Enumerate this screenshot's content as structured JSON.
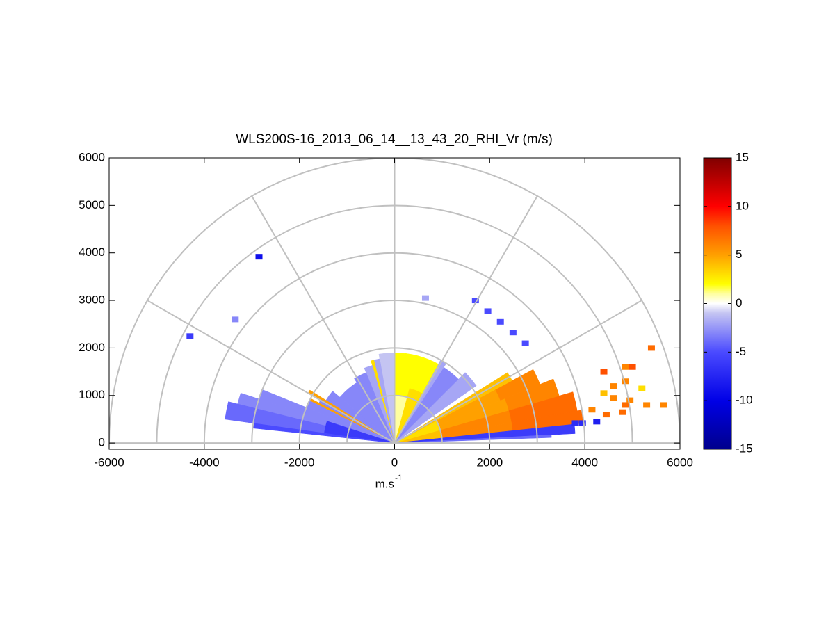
{
  "chart_data": {
    "type": "polar-rhi",
    "title": "WLS200S-16_2013_06_14__13_43_20_RHI_Vr (m/s)",
    "x_label": "m.s",
    "x_label_superscript": "-1",
    "xlim": [
      -6000,
      6000
    ],
    "xticks": [
      -6000,
      -4000,
      -2000,
      0,
      2000,
      4000,
      6000
    ],
    "ylim": [
      -130,
      6000
    ],
    "yticks": [
      0,
      1000,
      2000,
      3000,
      4000,
      5000,
      6000
    ],
    "polar_rings": [
      1000,
      2000,
      3000,
      4000,
      5000,
      6000
    ],
    "polar_spokes": [
      0,
      30,
      60,
      90,
      120,
      150,
      180
    ],
    "grid_color": "#c0c0c0",
    "colorbar": {
      "lim": [
        -15,
        15
      ],
      "ticks": [
        15,
        10,
        5,
        0,
        -5,
        -10,
        -15
      ]
    },
    "colormap": [
      {
        "value": -15,
        "color": "#00008c"
      },
      {
        "value": -10,
        "color": "#0000e6"
      },
      {
        "value": -5,
        "color": "#4a4aff"
      },
      {
        "value": -1,
        "color": "#c4c4f2"
      },
      {
        "value": 0,
        "color": "#ffffff"
      },
      {
        "value": 1,
        "color": "#ffffa0"
      },
      {
        "value": 2,
        "color": "#ffff00"
      },
      {
        "value": 5,
        "color": "#ffa000"
      },
      {
        "value": 8,
        "color": "#ff5000"
      },
      {
        "value": 10,
        "color": "#ff0000"
      },
      {
        "value": 15,
        "color": "#800000"
      }
    ],
    "sectors": [
      {
        "angles": [
          6,
          10
        ],
        "radii": [
          0,
          1000
        ],
        "value": 4
      },
      {
        "angles": [
          6,
          10
        ],
        "radii": [
          1000,
          2500
        ],
        "value": 6
      },
      {
        "angles": [
          6,
          10
        ],
        "radii": [
          2500,
          4000
        ],
        "value": 7
      },
      {
        "angles": [
          10,
          16
        ],
        "radii": [
          0,
          1000
        ],
        "value": 4
      },
      {
        "angles": [
          10,
          16
        ],
        "radii": [
          1000,
          2500
        ],
        "value": 6
      },
      {
        "angles": [
          10,
          16
        ],
        "radii": [
          2500,
          3900
        ],
        "value": 7
      },
      {
        "angles": [
          16,
          22
        ],
        "radii": [
          0,
          1000
        ],
        "value": 3
      },
      {
        "angles": [
          16,
          22
        ],
        "radii": [
          1000,
          2500
        ],
        "value": 5
      },
      {
        "angles": [
          16,
          22
        ],
        "radii": [
          2500,
          3600
        ],
        "value": 6
      },
      {
        "angles": [
          22,
          28
        ],
        "radii": [
          0,
          1000
        ],
        "value": 3
      },
      {
        "angles": [
          22,
          28
        ],
        "radii": [
          1000,
          2400
        ],
        "value": 5
      },
      {
        "angles": [
          22,
          28
        ],
        "radii": [
          2400,
          3300
        ],
        "value": 6
      },
      {
        "angles": [
          28,
          32
        ],
        "radii": [
          0,
          2800
        ],
        "value": 4
      },
      {
        "angles": [
          3,
          6
        ],
        "radii": [
          0,
          3800
        ],
        "value": -6
      },
      {
        "angles": [
          2,
          3
        ],
        "radii": [
          0,
          3300
        ],
        "value": -4
      },
      {
        "angles": [
          35,
          45
        ],
        "radii": [
          0,
          2100
        ],
        "value": -2
      },
      {
        "angles": [
          45,
          57
        ],
        "radii": [
          0,
          1900
        ],
        "value": -3
      },
      {
        "angles": [
          57,
          61
        ],
        "radii": [
          0,
          2000
        ],
        "value": -2
      },
      {
        "angles": [
          61,
          75
        ],
        "radii": [
          0,
          1200
        ],
        "value": 3
      },
      {
        "angles": [
          61,
          75
        ],
        "radii": [
          1200,
          1900
        ],
        "value": 2
      },
      {
        "angles": [
          75,
          90
        ],
        "radii": [
          0,
          1000
        ],
        "value": 1
      },
      {
        "angles": [
          75,
          90
        ],
        "radii": [
          1000,
          1900
        ],
        "value": 2
      },
      {
        "angles": [
          90,
          100
        ],
        "radii": [
          0,
          1900
        ],
        "value": -1
      },
      {
        "angles": [
          100,
          104
        ],
        "radii": [
          0,
          1800
        ],
        "value": -2
      },
      {
        "angles": [
          104,
          106
        ],
        "radii": [
          0,
          1800
        ],
        "value": 3
      },
      {
        "angles": [
          106,
          112
        ],
        "radii": [
          0,
          1700
        ],
        "value": -2
      },
      {
        "angles": [
          112,
          122
        ],
        "radii": [
          0,
          1600
        ],
        "value": -3
      },
      {
        "angles": [
          122,
          140
        ],
        "radii": [
          0,
          1500
        ],
        "value": -3
      },
      {
        "angles": [
          140,
          148
        ],
        "radii": [
          0,
          1700
        ],
        "value": -3
      },
      {
        "angles": [
          148,
          149.5
        ],
        "radii": [
          0,
          2100
        ],
        "value": 5
      },
      {
        "angles": [
          149.5,
          152
        ],
        "radii": [
          0,
          1800
        ],
        "value": -3
      },
      {
        "angles": [
          152,
          153.5
        ],
        "radii": [
          0,
          2000
        ],
        "value": 5
      },
      {
        "angles": [
          153.5,
          158
        ],
        "radii": [
          0,
          2000
        ],
        "value": -3
      },
      {
        "angles": [
          158,
          162
        ],
        "radii": [
          0,
          3000
        ],
        "value": -3
      },
      {
        "angles": [
          162,
          166
        ],
        "radii": [
          0,
          1500
        ],
        "value": -6
      },
      {
        "angles": [
          162,
          166
        ],
        "radii": [
          1500,
          3400
        ],
        "value": -3
      },
      {
        "angles": [
          166,
          172
        ],
        "radii": [
          0,
          1500
        ],
        "value": -6
      },
      {
        "angles": [
          166,
          172
        ],
        "radii": [
          1500,
          3600
        ],
        "value": -4
      },
      {
        "angles": [
          172,
          174
        ],
        "radii": [
          0,
          3000
        ],
        "value": -5
      }
    ],
    "cells": [
      {
        "x": -2850,
        "y": 3920,
        "value": -9
      },
      {
        "x": -3350,
        "y": 2600,
        "value": -3
      },
      {
        "x": -4300,
        "y": 2250,
        "value": -6
      },
      {
        "x": 650,
        "y": 3050,
        "value": -2
      },
      {
        "x": 1700,
        "y": 3000,
        "value": -5
      },
      {
        "x": 1960,
        "y": 2775,
        "value": -5
      },
      {
        "x": 2225,
        "y": 2550,
        "value": -5
      },
      {
        "x": 2490,
        "y": 2325,
        "value": -5
      },
      {
        "x": 2750,
        "y": 2100,
        "value": -5
      },
      {
        "x": 4400,
        "y": 1500,
        "value": 8
      },
      {
        "x": 4600,
        "y": 1200,
        "value": 6
      },
      {
        "x": 4400,
        "y": 1050,
        "value": 4
      },
      {
        "x": 4600,
        "y": 950,
        "value": 6
      },
      {
        "x": 4850,
        "y": 1600,
        "value": 6
      },
      {
        "x": 4850,
        "y": 1300,
        "value": 6
      },
      {
        "x": 4850,
        "y": 800,
        "value": 7
      },
      {
        "x": 4800,
        "y": 650,
        "value": 7
      },
      {
        "x": 4950,
        "y": 900,
        "value": 6
      },
      {
        "x": 5000,
        "y": 1600,
        "value": 8
      },
      {
        "x": 5200,
        "y": 1150,
        "value": 3
      },
      {
        "x": 5300,
        "y": 800,
        "value": 6
      },
      {
        "x": 5400,
        "y": 2000,
        "value": 7
      },
      {
        "x": 5650,
        "y": 800,
        "value": 6
      },
      {
        "x": 4150,
        "y": 700,
        "value": 6
      },
      {
        "x": 4450,
        "y": 600,
        "value": 7
      },
      {
        "x": 3800,
        "y": 420,
        "value": -7
      },
      {
        "x": 3950,
        "y": 420,
        "value": -7
      },
      {
        "x": 4250,
        "y": 450,
        "value": -8
      }
    ]
  }
}
